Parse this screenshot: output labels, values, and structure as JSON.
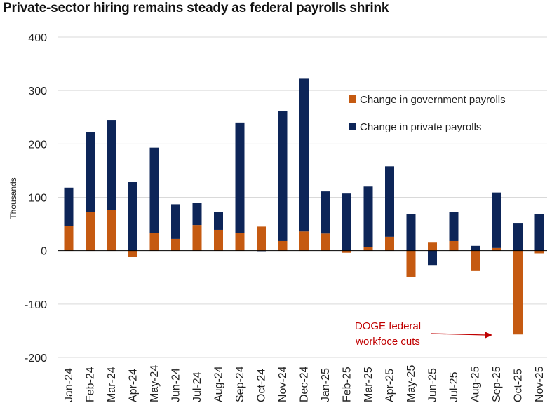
{
  "chart_data": {
    "type": "bar",
    "stacked": true,
    "title": "Private-sector hiring remains steady as federal payrolls shrink",
    "xlabel": "",
    "ylabel": "Thousands",
    "ylim": [
      -200,
      400
    ],
    "yticks": [
      400,
      300,
      200,
      100,
      0,
      -100,
      -200
    ],
    "grid": true,
    "legend_position": "top-right",
    "categories": [
      "Jan-24",
      "Feb-24",
      "Mar-24",
      "Apr-24",
      "May-24",
      "Jun-24",
      "Jul-24",
      "Aug-24",
      "Sep-24",
      "Oct-24",
      "Nov-24",
      "Dec-24",
      "Jan-25",
      "Feb-25",
      "Mar-25",
      "Apr-25",
      "May-25",
      "Jun-25",
      "Jul-25",
      "Aug-25",
      "Sep-25",
      "Oct-25",
      "Nov-25"
    ],
    "series": [
      {
        "name": "Change in government payrolls",
        "color": "#c55a11",
        "values": [
          46,
          72,
          77,
          -11,
          33,
          22,
          48,
          39,
          33,
          45,
          18,
          36,
          32,
          -4,
          7,
          26,
          -49,
          15,
          18,
          -37,
          5,
          -157,
          -5
        ]
      },
      {
        "name": "Change in private payrolls",
        "color": "#0d2558",
        "values": [
          72,
          150,
          168,
          129,
          160,
          65,
          41,
          33,
          207,
          -1,
          243,
          286,
          79,
          107,
          113,
          132,
          69,
          -27,
          55,
          9,
          104,
          52,
          69
        ]
      }
    ],
    "annotation": {
      "line1": "DOGE federal",
      "line2": "workfoce cuts",
      "color": "#c00000"
    }
  }
}
